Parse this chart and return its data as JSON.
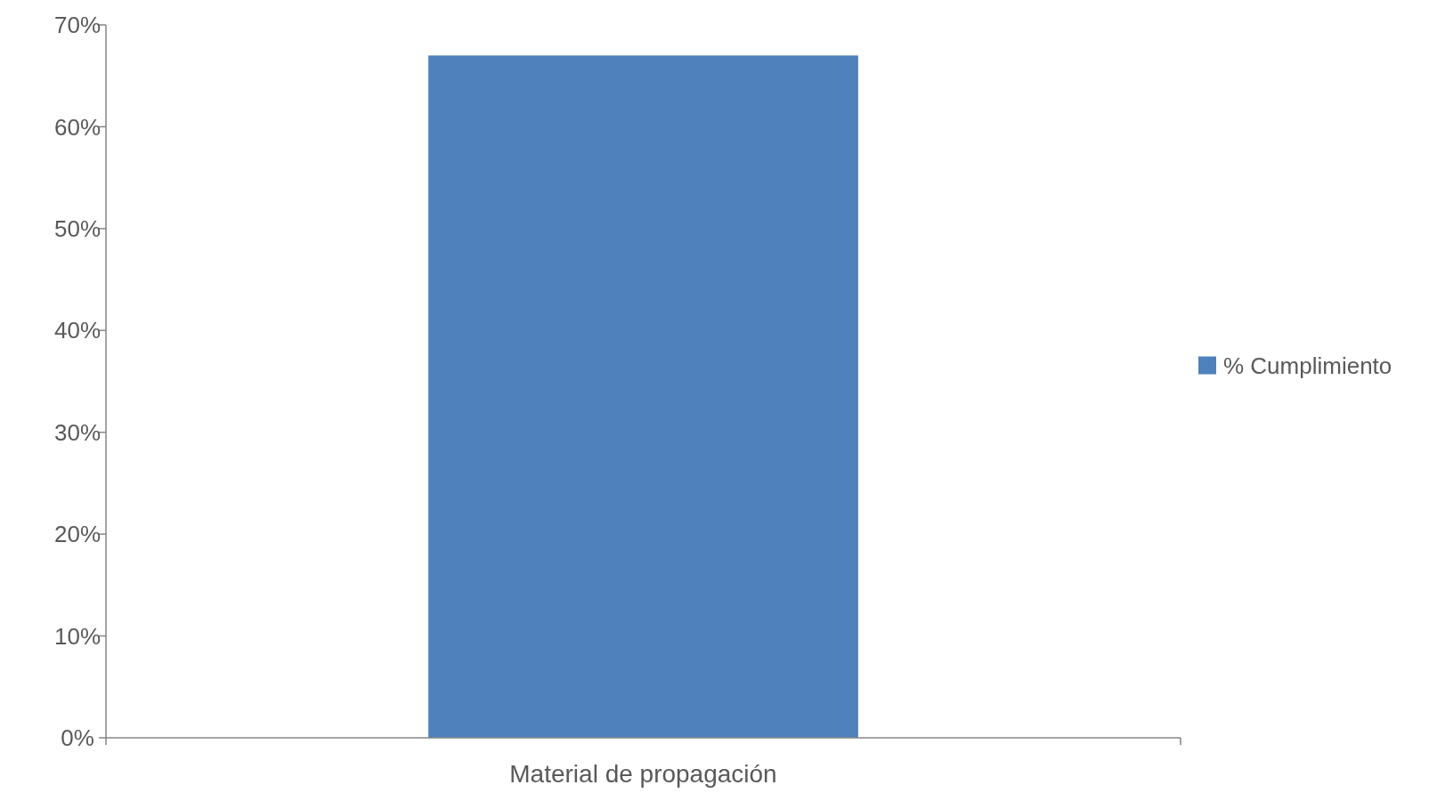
{
  "chart_data": {
    "type": "bar",
    "categories": [
      "Material de propagación"
    ],
    "series": [
      {
        "name": "% Cumplimiento",
        "color": "#4f81bd",
        "values": [
          67
        ]
      }
    ],
    "ylim": [
      0,
      70
    ],
    "yticks": [
      {
        "value": 0,
        "label": "0%"
      },
      {
        "value": 10,
        "label": "10%"
      },
      {
        "value": 20,
        "label": "20%"
      },
      {
        "value": 30,
        "label": "30%"
      },
      {
        "value": 40,
        "label": "40%"
      },
      {
        "value": 50,
        "label": "50%"
      },
      {
        "value": 60,
        "label": "60%"
      },
      {
        "value": 70,
        "label": "70%"
      }
    ],
    "grid": false,
    "legend": "right"
  }
}
